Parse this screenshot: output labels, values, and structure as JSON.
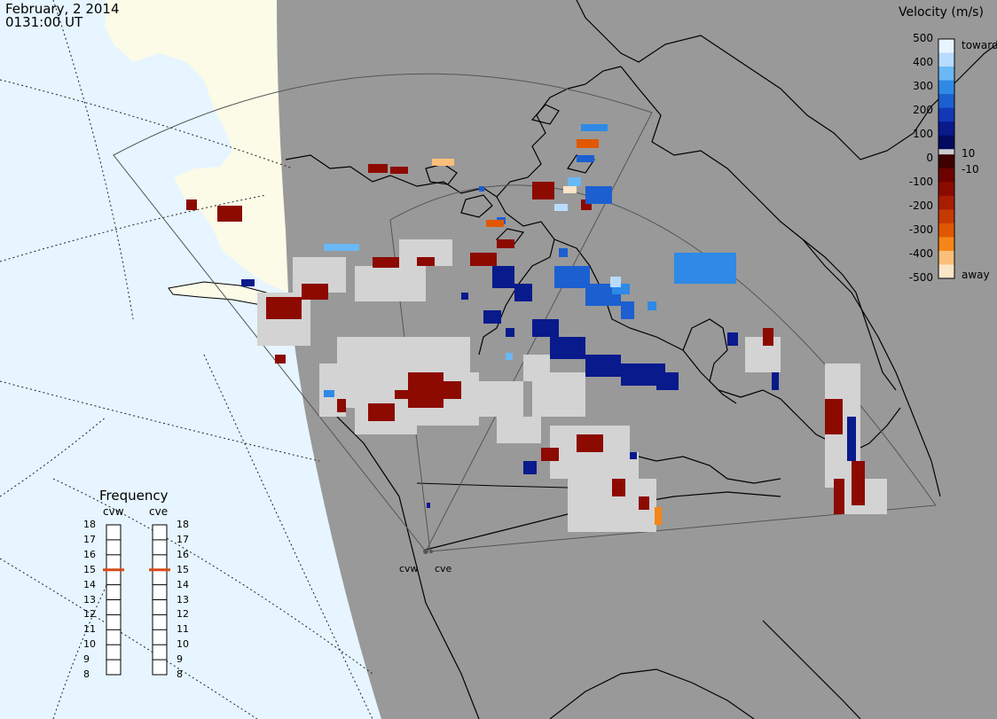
{
  "header": {
    "date": "February, 2 2014",
    "time": "0131:00 UT"
  },
  "colorbar": {
    "title": "Velocity (m/s)",
    "ticks": [
      "500",
      "400",
      "300",
      "200",
      "100",
      "0",
      "-100",
      "-200",
      "-300",
      "-400",
      "-500"
    ],
    "side_labels": [
      "toward",
      "10",
      "-10",
      "away"
    ],
    "colors": {
      "toward": [
        "#e8f4ff",
        "#b8dcff",
        "#6ab8f5",
        "#2e8ae6",
        "#1c5fd0",
        "#1238b8",
        "#081a8c",
        "#030a60"
      ],
      "away": [
        "#3e0000",
        "#6e0000",
        "#8c0a00",
        "#a81d00",
        "#c43a00",
        "#e05800",
        "#f58618",
        "#fbbf7a",
        "#fde5c8"
      ]
    }
  },
  "frequency": {
    "title": "Frequency",
    "radars": [
      "cvw",
      "cve"
    ],
    "scale": [
      "18",
      "17",
      "16",
      "15",
      "14",
      "13",
      "12",
      "11",
      "10",
      "9",
      "8"
    ],
    "current": {
      "cvw": 15,
      "cve": 15
    }
  },
  "sites": [
    "cvw",
    "cve"
  ],
  "colors": {
    "ocean": "#e6f5ff",
    "land_day": "#fbfbe8",
    "night": "#999999",
    "ground_scatter": "#d3d3d3",
    "land_outline": "#000000"
  }
}
